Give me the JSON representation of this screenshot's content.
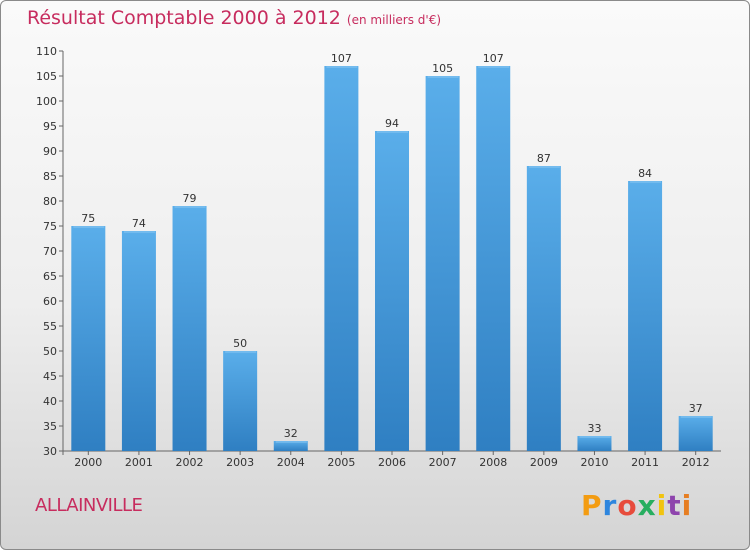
{
  "header": {
    "title": "Résultat Comptable 2000 à 2012",
    "units": "(en milliers d'€)"
  },
  "footer": {
    "commune": "ALLAINVILLE",
    "logo_letters": [
      "P",
      "r",
      "o",
      "x",
      "i",
      "t",
      "i"
    ],
    "logo_colors": [
      "#f39c12",
      "#2e86de",
      "#e74c3c",
      "#27ae60",
      "#f1c40f",
      "#8e44ad",
      "#e67e22"
    ]
  },
  "colors": {
    "bar_light": "#5aaeea",
    "bar_dark": "#2f7fc2",
    "title": "#c72c5e"
  },
  "chart_data": {
    "type": "bar",
    "title": "Résultat Comptable 2000 à 2012",
    "xlabel": "",
    "ylabel": "",
    "ylim": [
      30,
      110
    ],
    "yticks": [
      30,
      35,
      40,
      45,
      50,
      55,
      60,
      65,
      70,
      75,
      80,
      85,
      90,
      95,
      100,
      105,
      110
    ],
    "grid": false,
    "categories": [
      "2000",
      "2001",
      "2002",
      "2003",
      "2004",
      "2005",
      "2006",
      "2007",
      "2008",
      "2009",
      "2010",
      "2011",
      "2012"
    ],
    "values": [
      75,
      74,
      79,
      50,
      32,
      107,
      94,
      105,
      107,
      87,
      33,
      84,
      37
    ]
  }
}
